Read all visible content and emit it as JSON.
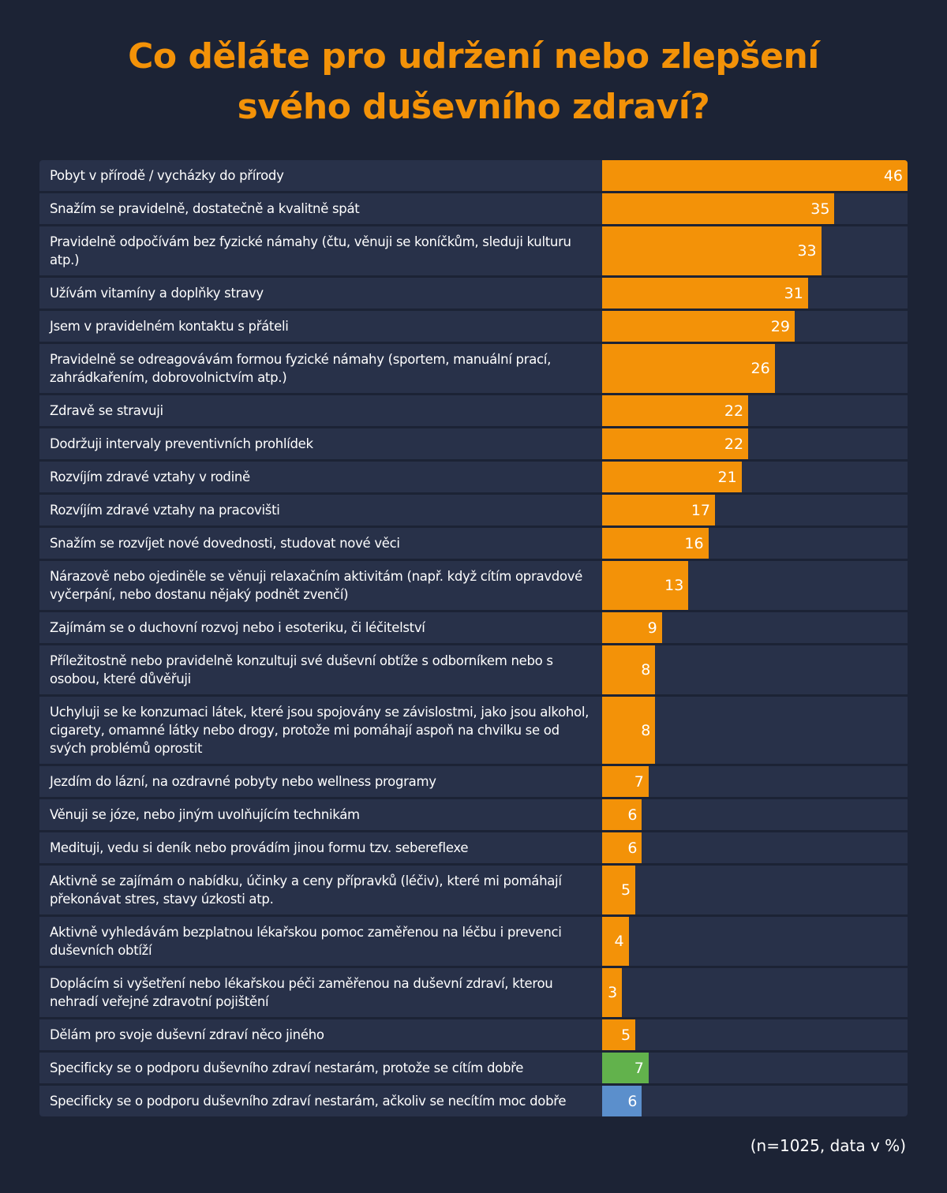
{
  "title_lines": [
    "Co děláte pro udržení nebo zlepšení",
    "svého duševního zdraví?"
  ],
  "note": "(n=1025, data v %)",
  "colors": {
    "background": "#1c2335",
    "row": "#283149",
    "orange": "#f39208",
    "green": "#62b24c",
    "blue": "#5b8fcc"
  },
  "chart_data": {
    "type": "bar",
    "orientation": "horizontal",
    "title": "Co děláte pro udržení nebo zlepšení svého duševního zdraví?",
    "note": "(n=1025, data v %)",
    "xlim": [
      0,
      46
    ],
    "grid": false,
    "categories": [
      "Pobyt v přírodě / vycházky do přírody",
      "Snažím se pravidelně, dostatečně a kvalitně spát",
      "Pravidelně odpočívám bez fyzické námahy (čtu, věnuji se koníčkům, sleduji kulturu atp.)",
      "Užívám vitamíny a doplňky stravy",
      "Jsem v pravidelném kontaktu s přáteli",
      "Pravidelně se odreagovávám formou fyzické námahy (sportem, manuální prací, zahrádkařením, dobrovolnictvím atp.)",
      "Zdravě se stravuji",
      "Dodržuji intervaly preventivních prohlídek",
      "Rozvíjím zdravé vztahy v rodině",
      "Rozvíjím zdravé vztahy na pracovišti",
      "Snažím se rozvíjet nové dovednosti, studovat nové věci",
      "Nárazově nebo ojediněle se věnuji relaxačním aktivitám (např. když cítím opravdové vyčerpání, nebo dostanu nějaký podnět zvenčí)",
      "Zajímám se o duchovní rozvoj nebo i esoteriku, či léčitelství",
      "Příležitostně nebo pravidelně konzultuji své duševní obtíže s odborníkem nebo s osobou, které důvěřuji",
      "Uchyluji se ke konzumaci látek, které jsou spojovány se závislostmi, jako jsou alkohol, cigarety, omamné látky nebo drogy, protože mi pomáhají aspoň na chvilku se od svých problémů oprostit",
      "Jezdím do lázní, na ozdravné pobyty nebo wellness programy",
      "Věnuji se józe, nebo jiným uvolňujícím technikám",
      "Medituji, vedu si deník nebo provádím jinou formu tzv. sebereflexe",
      "Aktivně se zajímám o nabídku, účinky a ceny přípravků (léčiv), které mi pomáhají překonávat stres, stavy úzkosti atp.",
      "Aktivně vyhledávám bezplatnou lékařskou pomoc zaměřenou na léčbu i prevenci duševních obtíží",
      "Doplácím si vyšetření nebo lékařskou péči zaměřenou na duševní zdraví, kterou nehradí veřejné zdravotní pojištění",
      "Dělám pro svoje duševní zdraví něco jiného",
      "Specificky se o podporu  duševního zdraví nestarám, protože se cítím dobře",
      "Specificky se o podporu  duševního zdraví nestarám, ačkoliv se necítím moc dobře"
    ],
    "values": [
      46,
      35,
      33,
      31,
      29,
      26,
      22,
      22,
      21,
      17,
      16,
      13,
      9,
      8,
      8,
      7,
      6,
      6,
      5,
      4,
      3,
      5,
      7,
      6
    ],
    "bar_colors": [
      "orange",
      "orange",
      "orange",
      "orange",
      "orange",
      "orange",
      "orange",
      "orange",
      "orange",
      "orange",
      "orange",
      "orange",
      "orange",
      "orange",
      "orange",
      "orange",
      "orange",
      "orange",
      "orange",
      "orange",
      "orange",
      "orange",
      "green",
      "blue"
    ]
  }
}
